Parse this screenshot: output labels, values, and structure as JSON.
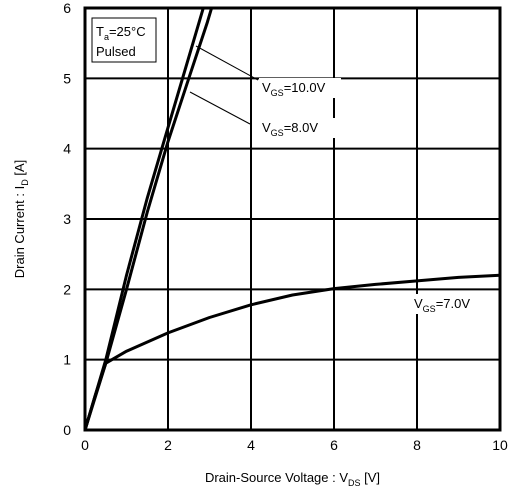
{
  "chart_data": {
    "type": "line",
    "xlabel": {
      "main": "Drain-Source Voltage : V",
      "sub": "DS",
      "tail": " [V]"
    },
    "ylabel": {
      "main": "Drain Current : I",
      "sub": "D",
      "tail": " [A]"
    },
    "xlim": [
      0,
      10
    ],
    "ylim": [
      0,
      6
    ],
    "x_ticks": [
      0,
      2,
      4,
      6,
      8,
      10
    ],
    "y_ticks": [
      0,
      1,
      2,
      3,
      4,
      5,
      6
    ],
    "x_tick_labels": [
      "0",
      "2",
      "4",
      "6",
      "8",
      "10"
    ],
    "y_tick_labels": [
      "0",
      "1",
      "2",
      "3",
      "4",
      "5",
      "6"
    ],
    "grid": true,
    "legend_box": {
      "line1_main": "T",
      "line1_sub": "a",
      "line1_tail": "=25°C",
      "line2": "Pulsed"
    },
    "series": [
      {
        "label_main": "V",
        "label_sub": "GS",
        "label_tail": "=10.0V",
        "points": [
          [
            0,
            0
          ],
          [
            0.5,
            1.0
          ],
          [
            1.0,
            2.2
          ],
          [
            1.5,
            3.3
          ],
          [
            2.0,
            4.3
          ],
          [
            2.5,
            5.3
          ],
          [
            2.85,
            6.0
          ]
        ]
      },
      {
        "label_main": "V",
        "label_sub": "GS",
        "label_tail": "=8.0V",
        "points": [
          [
            0,
            0
          ],
          [
            0.5,
            0.95
          ],
          [
            1.0,
            2.0
          ],
          [
            1.5,
            3.1
          ],
          [
            2.0,
            4.1
          ],
          [
            2.5,
            5.0
          ],
          [
            2.95,
            5.8
          ],
          [
            3.05,
            6.0
          ]
        ]
      },
      {
        "label_main": "V",
        "label_sub": "GS",
        "label_tail": "=7.0V",
        "points": [
          [
            0,
            0
          ],
          [
            0.25,
            0.5
          ],
          [
            0.5,
            0.95
          ],
          [
            1.0,
            1.12
          ],
          [
            2.0,
            1.38
          ],
          [
            3.0,
            1.6
          ],
          [
            4.0,
            1.78
          ],
          [
            5.0,
            1.92
          ],
          [
            6.0,
            2.01
          ],
          [
            7.0,
            2.07
          ],
          [
            8.0,
            2.12
          ],
          [
            9.0,
            2.17
          ],
          [
            10.0,
            2.2
          ]
        ]
      }
    ]
  }
}
